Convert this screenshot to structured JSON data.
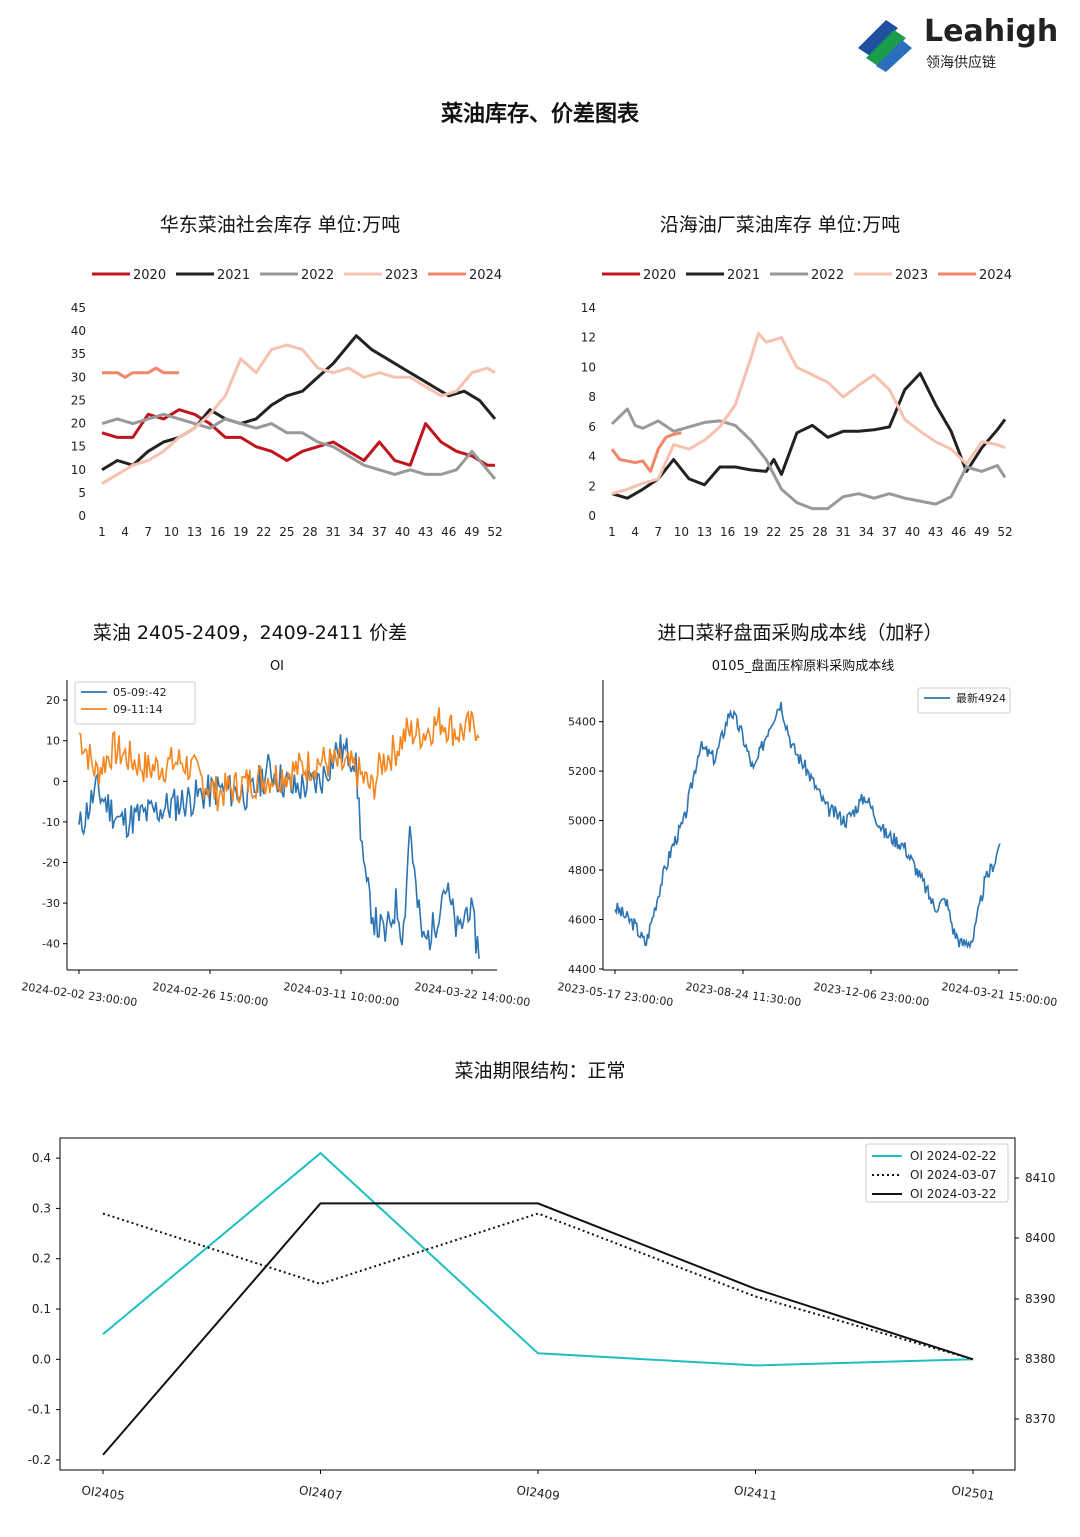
{
  "logo": {
    "name_en": "Leahigh",
    "name_cn": "领海供应链"
  },
  "page_title": "菜油库存、价差图表",
  "chart_data": [
    {
      "id": "east-stock",
      "type": "line",
      "title": "华东菜油社会库存  单位:万吨",
      "legend_position": "top",
      "x_ticks": [
        "1",
        "4",
        "7",
        "10",
        "13",
        "16",
        "19",
        "22",
        "25",
        "28",
        "31",
        "34",
        "37",
        "40",
        "43",
        "46",
        "49",
        "52"
      ],
      "y_ticks": [
        "0",
        "5",
        "10",
        "15",
        "20",
        "25",
        "30",
        "35",
        "40",
        "45"
      ],
      "ylim": [
        0,
        45
      ],
      "xlim": [
        1,
        52
      ],
      "series": [
        {
          "name": "2020",
          "color": "#c0141c",
          "x": [
            1,
            3,
            5,
            7,
            9,
            11,
            13,
            15,
            17,
            19,
            21,
            23,
            25,
            27,
            29,
            31,
            33,
            35,
            37,
            39,
            41,
            43,
            45,
            47,
            49,
            51,
            52
          ],
          "y": [
            18,
            17,
            17,
            22,
            21,
            23,
            22,
            20,
            17,
            17,
            15,
            14,
            12,
            14,
            15,
            16,
            14,
            12,
            16,
            12,
            11,
            20,
            16,
            14,
            13,
            11,
            11
          ]
        },
        {
          "name": "2021",
          "color": "#222222",
          "x": [
            1,
            3,
            5,
            7,
            9,
            11,
            13,
            15,
            17,
            19,
            21,
            23,
            25,
            27,
            29,
            31,
            33,
            34,
            36,
            38,
            40,
            42,
            44,
            46,
            48,
            50,
            52
          ],
          "y": [
            10,
            12,
            11,
            14,
            16,
            17,
            19,
            23,
            21,
            20,
            21,
            24,
            26,
            27,
            30,
            33,
            37,
            39,
            36,
            34,
            32,
            30,
            28,
            26,
            27,
            25,
            21
          ]
        },
        {
          "name": "2022",
          "color": "#999999",
          "x": [
            1,
            3,
            5,
            7,
            9,
            11,
            13,
            15,
            17,
            19,
            21,
            23,
            25,
            27,
            29,
            31,
            33,
            35,
            37,
            39,
            41,
            43,
            45,
            47,
            49,
            51,
            52
          ],
          "y": [
            20,
            21,
            20,
            21,
            22,
            21,
            20,
            19,
            21,
            20,
            19,
            20,
            18,
            18,
            16,
            15,
            13,
            11,
            10,
            9,
            10,
            9,
            9,
            10,
            14,
            10,
            8
          ]
        },
        {
          "name": "2023",
          "color": "#f6c2b0",
          "x": [
            1,
            3,
            5,
            7,
            9,
            11,
            13,
            15,
            17,
            19,
            21,
            23,
            25,
            27,
            29,
            31,
            33,
            35,
            37,
            39,
            41,
            43,
            45,
            47,
            49,
            51,
            52
          ],
          "y": [
            7,
            9,
            11,
            12,
            14,
            17,
            19,
            22,
            26,
            34,
            31,
            36,
            37,
            36,
            32,
            31,
            32,
            30,
            31,
            30,
            30,
            28,
            26,
            27,
            31,
            32,
            31
          ]
        },
        {
          "name": "2024",
          "color": "#f1866a",
          "x": [
            1,
            2,
            3,
            4,
            5,
            6,
            7,
            8,
            9,
            10,
            11
          ],
          "y": [
            31,
            31,
            31,
            30,
            31,
            31,
            31,
            32,
            31,
            31,
            31
          ]
        }
      ]
    },
    {
      "id": "coastal-stock",
      "type": "line",
      "title": "沿海油厂菜油库存  单位:万吨",
      "legend_position": "top",
      "x_ticks": [
        "1",
        "4",
        "7",
        "10",
        "13",
        "16",
        "19",
        "22",
        "25",
        "28",
        "31",
        "34",
        "37",
        "40",
        "43",
        "46",
        "49",
        "52"
      ],
      "y_ticks": [
        "0",
        "2",
        "4",
        "6",
        "8",
        "10",
        "12",
        "14"
      ],
      "ylim": [
        0,
        14
      ],
      "xlim": [
        1,
        52
      ],
      "series": [
        {
          "name": "2020",
          "color": "#c0141c",
          "x": [],
          "y": []
        },
        {
          "name": "2021",
          "color": "#222222",
          "x": [
            1,
            3,
            5,
            7,
            9,
            11,
            13,
            15,
            17,
            19,
            21,
            22,
            23,
            25,
            27,
            29,
            31,
            33,
            35,
            37,
            39,
            41,
            43,
            45,
            47,
            49,
            51,
            52
          ],
          "y": [
            1.5,
            1.2,
            1.8,
            2.5,
            3.8,
            2.5,
            2.1,
            3.3,
            3.3,
            3.1,
            3.0,
            3.8,
            2.8,
            5.6,
            6.1,
            5.3,
            5.7,
            5.7,
            5.8,
            6.0,
            8.5,
            9.6,
            7.5,
            5.7,
            3.0,
            4.6,
            5.8,
            6.5
          ]
        },
        {
          "name": "2022",
          "color": "#999999",
          "x": [
            1,
            3,
            4,
            5,
            7,
            9,
            11,
            13,
            15,
            17,
            19,
            21,
            23,
            25,
            27,
            29,
            31,
            33,
            35,
            37,
            39,
            41,
            43,
            45,
            47,
            49,
            51,
            52
          ],
          "y": [
            6.2,
            7.2,
            6.1,
            5.9,
            6.4,
            5.7,
            6.0,
            6.3,
            6.4,
            6.1,
            5.1,
            3.8,
            1.8,
            0.9,
            0.5,
            0.5,
            1.3,
            1.5,
            1.2,
            1.5,
            1.2,
            1.0,
            0.8,
            1.3,
            3.3,
            3.0,
            3.4,
            2.6
          ]
        },
        {
          "name": "2023",
          "color": "#f6c2b0",
          "x": [
            1,
            3,
            5,
            7,
            9,
            11,
            13,
            15,
            17,
            19,
            20,
            21,
            23,
            25,
            27,
            29,
            31,
            33,
            35,
            37,
            39,
            41,
            43,
            45,
            47,
            49,
            51,
            52
          ],
          "y": [
            1.5,
            1.8,
            2.2,
            2.5,
            4.8,
            4.5,
            5.1,
            6.0,
            7.5,
            10.6,
            12.3,
            11.7,
            12.0,
            10.0,
            9.5,
            9.0,
            8.0,
            8.8,
            9.5,
            8.5,
            6.5,
            5.7,
            5.0,
            4.5,
            3.5,
            5.0,
            4.8,
            4.6
          ]
        },
        {
          "name": "2024",
          "color": "#f1866a",
          "x": [
            1,
            2,
            3,
            4,
            5,
            6,
            7,
            8,
            9,
            10
          ],
          "y": [
            4.5,
            3.8,
            3.7,
            3.6,
            3.7,
            3.0,
            4.5,
            5.3,
            5.5,
            5.6
          ]
        }
      ]
    },
    {
      "id": "spread",
      "type": "line",
      "title": "菜油 2405-2409，2409-2411 价差",
      "subtitle": "OI",
      "y_ticks": [
        "20",
        "10",
        "0",
        "-10",
        "-20",
        "-30",
        "-40"
      ],
      "ylim": [
        -45,
        22
      ],
      "x_ticks": [
        "2024-02-02  23:00:00",
        "2024-02-26  15:00:00",
        "2024-03-11  10:00:00",
        "2024-03-22  14:00:00"
      ],
      "legend_position": "top-left",
      "series": [
        {
          "name": "05-09:-42",
          "color": "#2d74b2",
          "seed": 11,
          "anchors": [
            [
              0,
              -12
            ],
            [
              0.05,
              -2
            ],
            [
              0.12,
              -10
            ],
            [
              0.2,
              -8
            ],
            [
              0.3,
              -5
            ],
            [
              0.4,
              -2
            ],
            [
              0.5,
              -3
            ],
            [
              0.55,
              3
            ],
            [
              0.62,
              -2
            ],
            [
              0.7,
              0
            ],
            [
              0.75,
              8
            ],
            [
              0.8,
              6
            ],
            [
              0.83,
              -25
            ],
            [
              0.86,
              -35
            ],
            [
              0.89,
              -38
            ],
            [
              0.92,
              -30
            ],
            [
              0.94,
              -38
            ],
            [
              0.96,
              -10
            ],
            [
              0.98,
              -30
            ],
            [
              1.0,
              -40
            ],
            [
              1.03,
              -36
            ],
            [
              1.06,
              -25
            ],
            [
              1.1,
              -38
            ],
            [
              1.13,
              -30
            ],
            [
              1.16,
              -42
            ]
          ]
        },
        {
          "name": "09-11:14",
          "color": "#f5861f",
          "seed": 7,
          "anchors": [
            [
              0,
              12
            ],
            [
              0.05,
              2
            ],
            [
              0.1,
              8
            ],
            [
              0.2,
              3
            ],
            [
              0.3,
              5
            ],
            [
              0.4,
              -3
            ],
            [
              0.5,
              0
            ],
            [
              0.6,
              2
            ],
            [
              0.7,
              5
            ],
            [
              0.8,
              3
            ],
            [
              0.85,
              -2
            ],
            [
              0.88,
              5
            ],
            [
              0.92,
              8
            ],
            [
              0.95,
              12
            ],
            [
              1.0,
              12
            ],
            [
              1.05,
              15
            ],
            [
              1.1,
              12
            ],
            [
              1.16,
              14
            ]
          ]
        }
      ]
    },
    {
      "id": "cost-line",
      "type": "line",
      "title": "进口菜籽盘面采购成本线（加籽）",
      "subtitle": "0105_盘面压榨原料采购成本线",
      "y_ticks": [
        "5400",
        "5200",
        "5000",
        "4800",
        "4600",
        "4400"
      ],
      "ylim": [
        4420,
        5520
      ],
      "x_ticks": [
        "2023-05-17  23:00:00",
        "2023-08-24  11:30:00",
        "2023-12-06  23:00:00",
        "2024-03-21  15:00:00"
      ],
      "legend_position": "top-right",
      "series": [
        {
          "name": "最新4924",
          "color": "#2d74b2",
          "seed": 3,
          "anchors": [
            [
              0,
              4650
            ],
            [
              0.05,
              4580
            ],
            [
              0.08,
              4500
            ],
            [
              0.12,
              4750
            ],
            [
              0.15,
              4900
            ],
            [
              0.18,
              5000
            ],
            [
              0.22,
              5300
            ],
            [
              0.26,
              5250
            ],
            [
              0.3,
              5450
            ],
            [
              0.33,
              5350
            ],
            [
              0.36,
              5200
            ],
            [
              0.4,
              5380
            ],
            [
              0.43,
              5480
            ],
            [
              0.46,
              5300
            ],
            [
              0.5,
              5200
            ],
            [
              0.55,
              5050
            ],
            [
              0.6,
              5000
            ],
            [
              0.65,
              5100
            ],
            [
              0.7,
              4950
            ],
            [
              0.75,
              4900
            ],
            [
              0.8,
              4750
            ],
            [
              0.83,
              4650
            ],
            [
              0.86,
              4680
            ],
            [
              0.88,
              4550
            ],
            [
              0.9,
              4500
            ],
            [
              0.93,
              4520
            ],
            [
              0.96,
              4750
            ],
            [
              0.99,
              4850
            ],
            [
              1.0,
              4924
            ]
          ]
        }
      ]
    },
    {
      "id": "term-structure",
      "type": "line",
      "title": "菜油期限结构：正常",
      "categories": [
        "OI2405",
        "OI2407",
        "OI2409",
        "OI2411",
        "OI2501"
      ],
      "y_ticks_left": [
        "0.4",
        "0.3",
        "0.2",
        "0.1",
        "0.0",
        "-0.1",
        "-0.2"
      ],
      "y_ticks_right": [
        "8410",
        "8400",
        "8390",
        "8380",
        "8370"
      ],
      "ylim": [
        -0.2,
        0.4
      ],
      "legend_position": "top-right",
      "series": [
        {
          "name": "OI  2024-02-22",
          "color": "#1fbfbf",
          "style": "solid",
          "values": [
            0.05,
            0.41,
            0.012,
            -0.012,
            0.0
          ]
        },
        {
          "name": "OI  2024-03-07",
          "color": "#111111",
          "style": "dotted",
          "values": [
            0.29,
            0.15,
            0.29,
            0.125,
            0.0
          ]
        },
        {
          "name": "OI  2024-03-22",
          "color": "#111111",
          "style": "solid",
          "values": [
            -0.19,
            0.31,
            0.31,
            0.14,
            0.0
          ]
        }
      ]
    }
  ]
}
